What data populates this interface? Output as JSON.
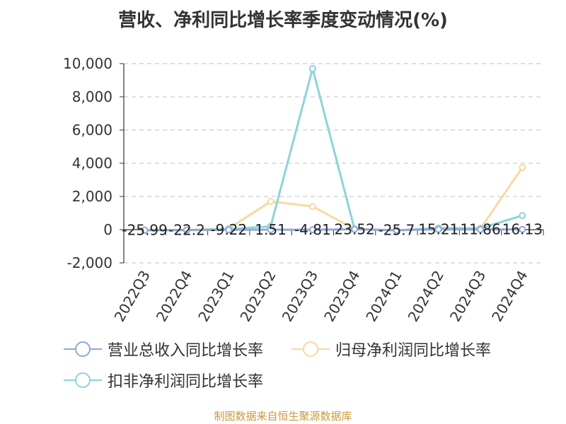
{
  "title": "营收、净利同比增长率季度变动情况(%)",
  "footer": "制图数据来自恒生聚源数据库",
  "legend": [
    {
      "label": "营业总收入同比增长率"
    },
    {
      "label": "归母净利润同比增长率"
    },
    {
      "label": "扣非净利润同比增长率"
    }
  ],
  "chart_data": {
    "type": "line",
    "categories": [
      "2022Q3",
      "2022Q4",
      "2023Q1",
      "2023Q2",
      "2023Q3",
      "2023Q4",
      "2024Q1",
      "2024Q2",
      "2024Q3",
      "2024Q4"
    ],
    "ylim": [
      -2000,
      10000
    ],
    "yticks": [
      -2000,
      0,
      2000,
      4000,
      6000,
      8000,
      10000
    ],
    "ytick_labels": [
      "-2,000",
      "0",
      "2,000",
      "4,000",
      "6,000",
      "8,000",
      "10,000"
    ],
    "grid": true,
    "legend_position": "bottom",
    "series": [
      {
        "name": "营业总收入同比增长率",
        "color": "#8fa9d6",
        "values": [
          -25.99,
          -22.2,
          -9.22,
          1.51,
          -4.81,
          23.52,
          -25.7,
          15.21,
          11.86,
          16.13
        ],
        "labels": [
          "-25.99",
          "-22.2",
          "-9.22",
          "1.51",
          "-4.81",
          "23.52",
          "-25.7",
          "15.21",
          "11.86",
          "16.13"
        ]
      },
      {
        "name": "归母净利润同比增长率",
        "color": "#f7d9a0",
        "values": [
          -30,
          -20,
          60,
          1700,
          1400,
          30,
          -40,
          50,
          60,
          3750
        ]
      },
      {
        "name": "扣非净利润同比增长率",
        "color": "#8dd3d9",
        "values": [
          -40,
          -30,
          40,
          200,
          9700,
          40,
          -50,
          100,
          80,
          850
        ]
      }
    ]
  }
}
